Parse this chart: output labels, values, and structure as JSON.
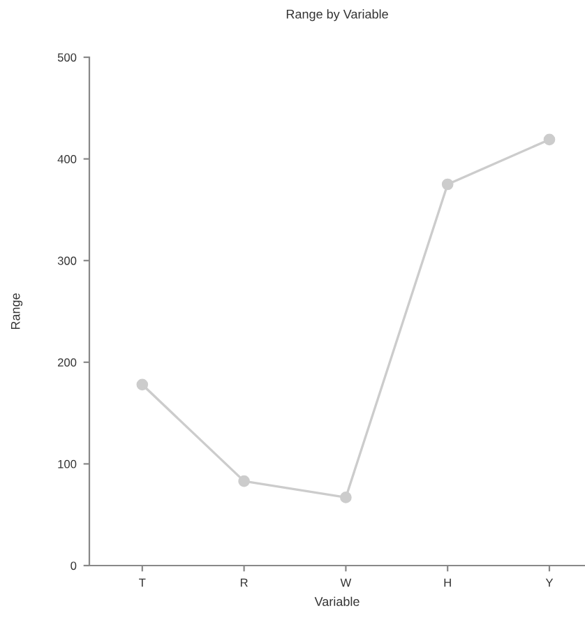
{
  "chart_data": {
    "type": "line",
    "title": "Range by Variable",
    "xlabel": "Variable",
    "ylabel": "Range",
    "categories": [
      "T",
      "R",
      "W",
      "H",
      "Y"
    ],
    "series": [
      {
        "color": "#cccccc",
        "values": [
          178,
          83,
          67,
          375,
          419
        ]
      }
    ],
    "ylim": [
      0,
      500
    ],
    "yticks": [
      0,
      100,
      200,
      300,
      400,
      500
    ],
    "marker": "circle",
    "line_style": "solid",
    "grid": false,
    "legend": false
  }
}
